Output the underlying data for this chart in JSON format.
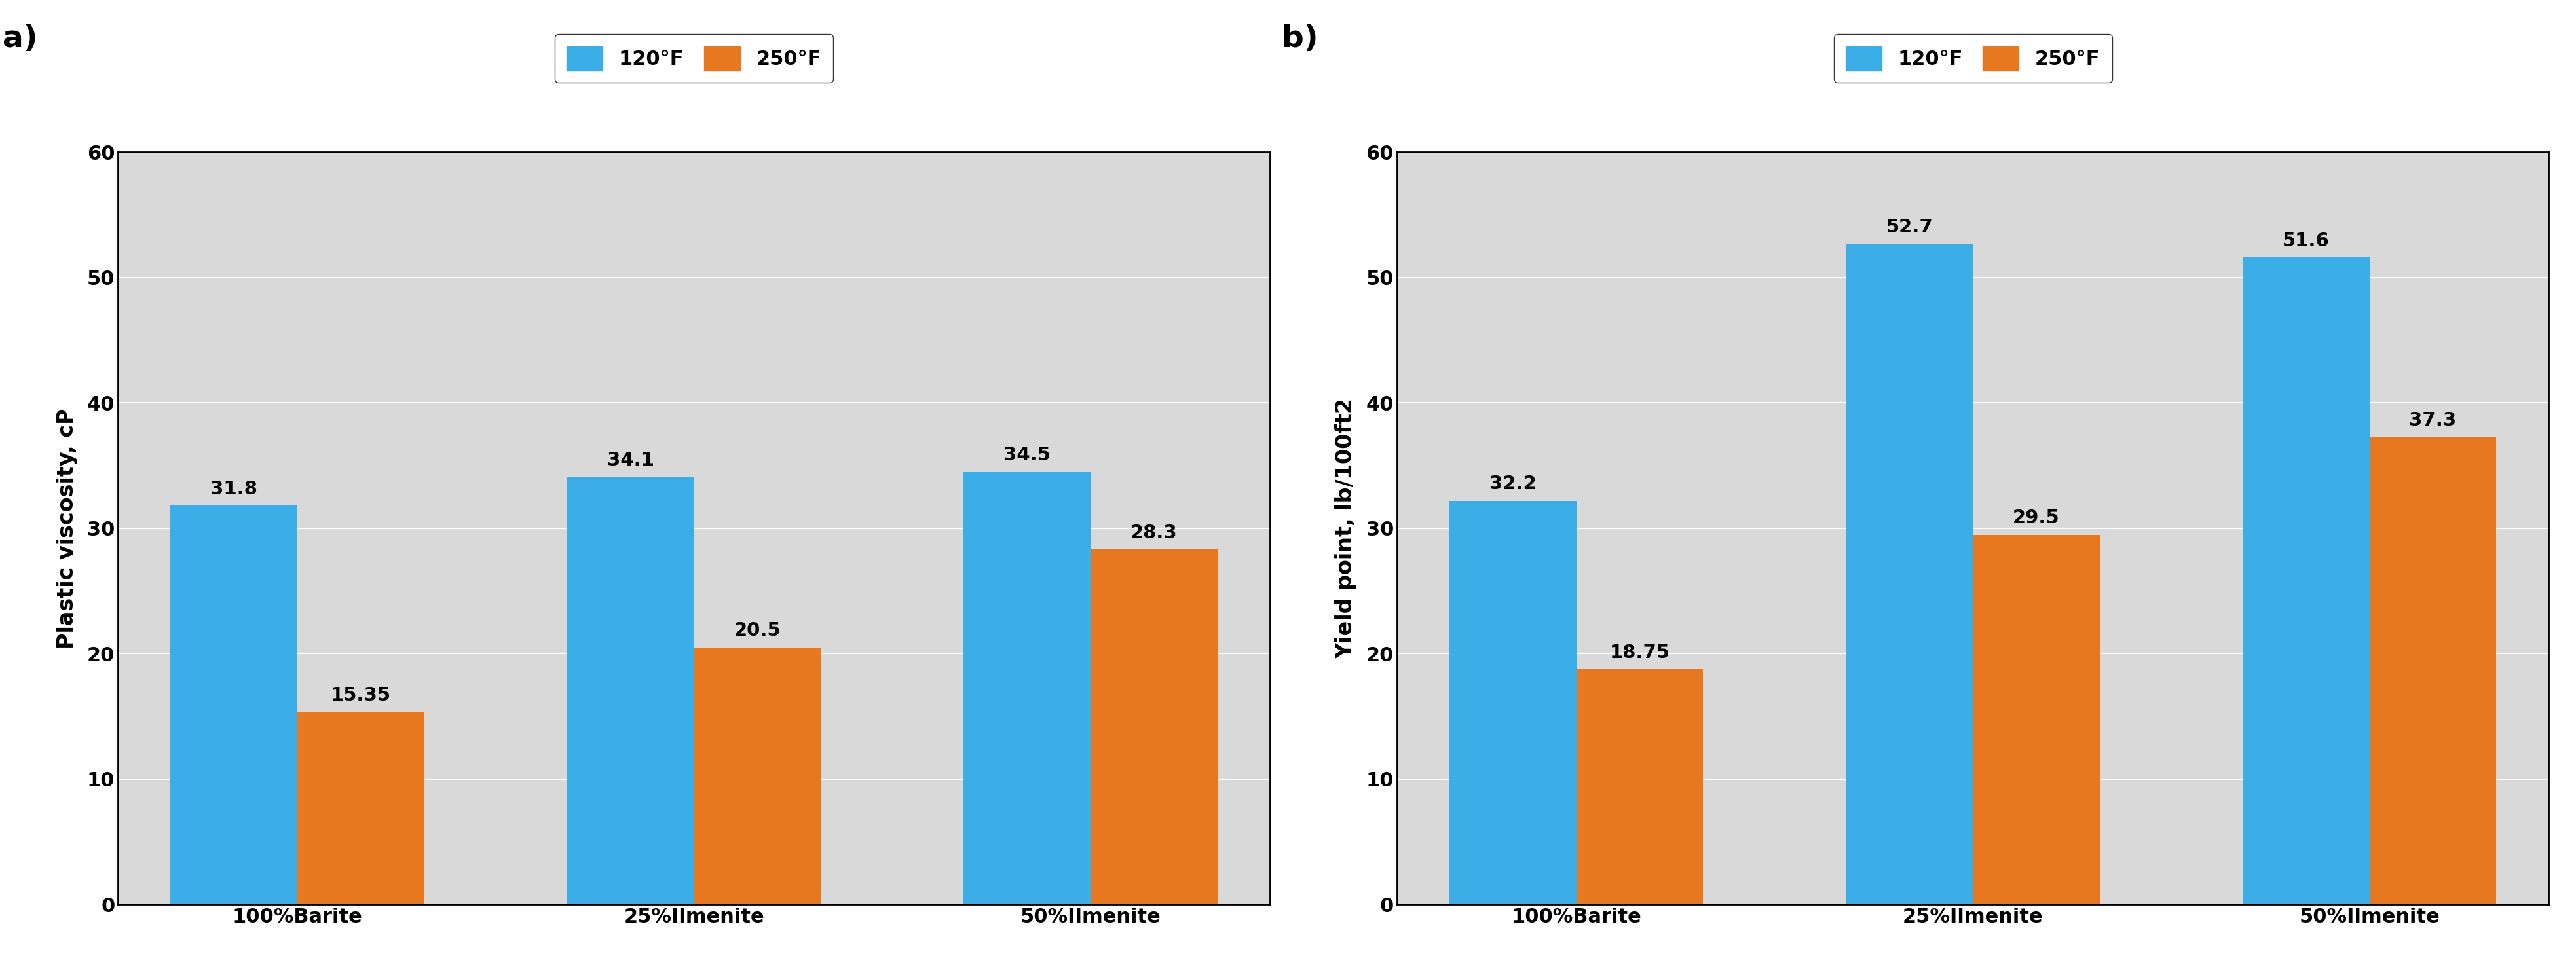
{
  "categories": [
    "100%Barite",
    "25%Ilmenite",
    "50%Ilmenite"
  ],
  "chart_a": {
    "label": "a)",
    "ylabel": "Plastic viscosity, cP",
    "ylim": [
      0,
      60
    ],
    "yticks": [
      0,
      10,
      20,
      30,
      40,
      50,
      60
    ],
    "values_120F": [
      31.8,
      34.1,
      34.5
    ],
    "values_250F": [
      15.35,
      20.5,
      28.3
    ],
    "labels_120F": [
      "31.8",
      "34.1",
      "34.5"
    ],
    "labels_250F": [
      "15.35",
      "20.5",
      "28.3"
    ]
  },
  "chart_b": {
    "label": "b)",
    "ylabel": "Yield point, lb/100ft2",
    "ylim": [
      0,
      60
    ],
    "yticks": [
      0,
      10,
      20,
      30,
      40,
      50,
      60
    ],
    "values_120F": [
      32.2,
      52.7,
      51.6
    ],
    "values_250F": [
      18.75,
      29.5,
      37.3
    ],
    "labels_120F": [
      "32.2",
      "52.7",
      "51.6"
    ],
    "labels_250F": [
      "18.75",
      "29.5",
      "37.3"
    ]
  },
  "color_120F": "#3BAEE8",
  "color_250F": "#E87820",
  "legend_labels": [
    "120°F",
    "250°F"
  ],
  "bar_width": 0.32,
  "bg_color": "#FFFFFF",
  "plot_bg_color": "#D9D9D9",
  "label_fontsize": 24,
  "tick_fontsize": 22,
  "annot_fontsize": 21,
  "legend_fontsize": 22,
  "panel_label_fontsize": 34,
  "grid_color": "#FFFFFF",
  "bar_edge_color": "none"
}
